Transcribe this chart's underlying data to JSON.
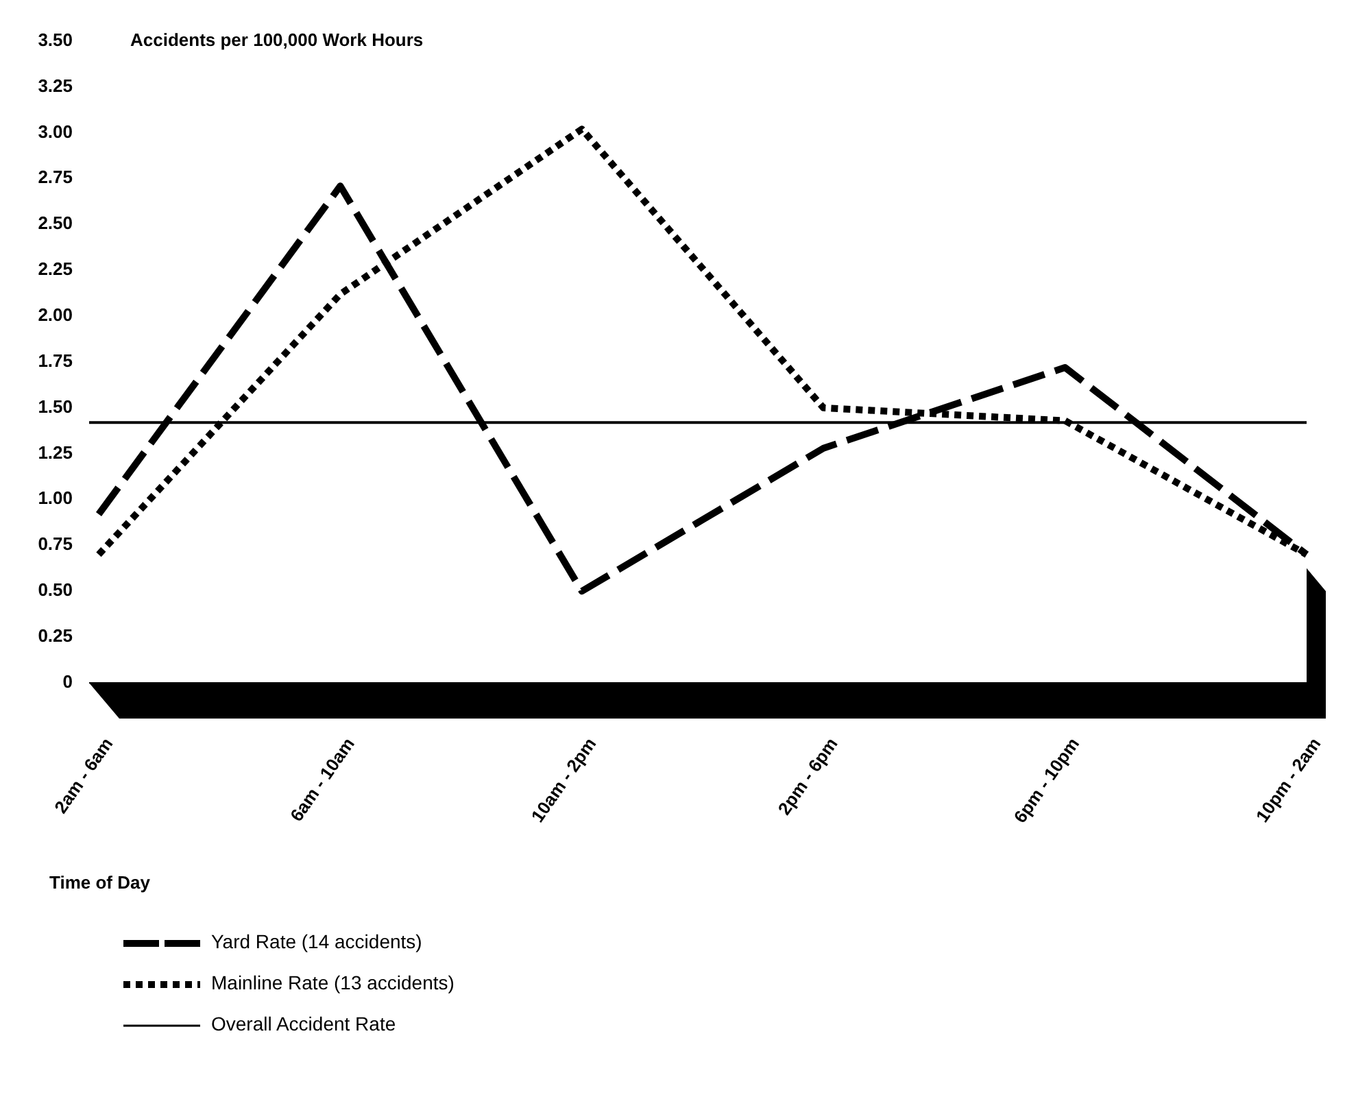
{
  "chart_data": {
    "type": "line",
    "ylabel": "Accidents per 100,000 Work Hours",
    "xlabel": "Time of Day",
    "categories": [
      "2am - 6am",
      "6am - 10am",
      "10am - 2pm",
      "2pm - 6pm",
      "6pm - 10pm",
      "10pm - 2am"
    ],
    "series": [
      {
        "name": "Yard Rate (14 accidents)",
        "color": "#000000",
        "line_style": "dashed",
        "values": [
          0.92,
          2.71,
          0.5,
          1.28,
          1.72,
          0.7
        ]
      },
      {
        "name": "Mainline Rate (13 accidents)",
        "color": "#000000",
        "line_style": "dotted",
        "values": [
          0.7,
          2.12,
          3.02,
          1.5,
          1.43,
          0.7
        ]
      }
    ],
    "ref_lines": [
      {
        "axis": "y",
        "value": 1.42,
        "label": "Overall Accident Rate",
        "color": "#000000",
        "line_style": "solid"
      }
    ],
    "ylim": [
      0,
      3.5
    ],
    "yticks": [
      0,
      {
        "value": 0.25,
        "label": "0.25"
      },
      {
        "value": 0.5,
        "label": "0.50"
      },
      {
        "value": 0.75,
        "label": "0.75"
      },
      {
        "value": 1,
        "label": "1.00"
      },
      {
        "value": 1.25,
        "label": "1.25"
      },
      {
        "value": 1.5,
        "label": "1.50"
      },
      {
        "value": 1.75,
        "label": "1.75"
      },
      {
        "value": 2,
        "label": "2.00"
      },
      {
        "value": 2.25,
        "label": "2.25"
      },
      {
        "value": 2.5,
        "label": "2.50"
      },
      {
        "value": 2.75,
        "label": "2.75"
      },
      {
        "value": 3,
        "label": "3.00"
      },
      {
        "value": 3.25,
        "label": "3.25"
      },
      {
        "value": 3.5,
        "label": "3.50"
      }
    ],
    "grid": false,
    "legend": "bottom"
  }
}
